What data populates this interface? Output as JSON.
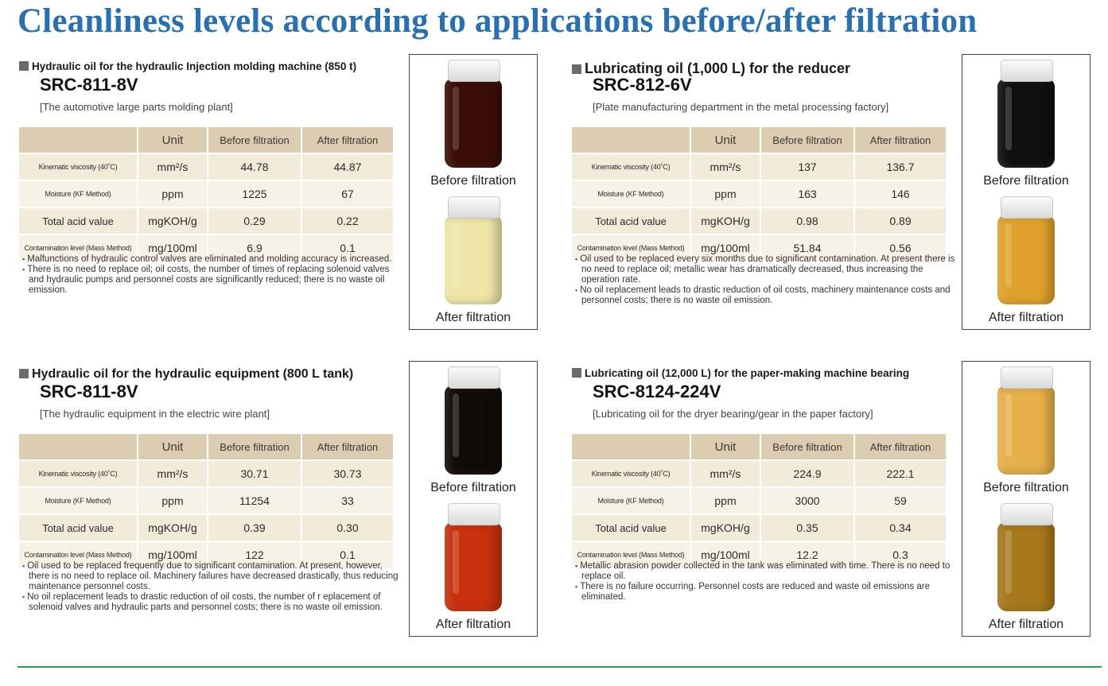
{
  "title": "Cleanliness levels according to applications before/after filtration",
  "table_headers": {
    "unit": "Unit",
    "before": "Before filtration",
    "after": "After filtration"
  },
  "photo_captions": {
    "before": "Before filtration",
    "after": "After filtration"
  },
  "panels": [
    {
      "heading": "Hydraulic oil for the hydraulic Injection molding machine (850 t)",
      "model": "SRC-811-8V",
      "location": "[The automotive large parts molding plant]",
      "rows": [
        {
          "label": "Kinematic viscosity (40˚C)",
          "unit": "mm²/s",
          "before": "44.78",
          "after": "44.87"
        },
        {
          "label": "Moisture (KF Method)",
          "unit": "ppm",
          "before": "1225",
          "after": "67"
        },
        {
          "label": "Total acid value",
          "unit": "mgKOH/g",
          "before": "0.29",
          "after": "0.22"
        },
        {
          "label": "Contamination level (Mass Method)",
          "unit": "mg/100ml",
          "before": "6.9",
          "after": "0.1"
        }
      ],
      "notes": [
        "Malfunctions of hydraulic control valves are eliminated and molding accuracy is increased.",
        "There is no need to replace oil; oil costs, the number of times of replacing solenoid valves and hydraulic pumps and personnel costs are significantly reduced; there is no waste oil emission."
      ],
      "colors": {
        "before": "#3a0d05",
        "after": "#efe6a8"
      }
    },
    {
      "heading": "Lubricating oil (1,000 L) for the reducer",
      "model": "SRC-812-6V",
      "location": "[Plate manufacturing department in the metal processing factory]",
      "rows": [
        {
          "label": "Kinematic viscosity (40˚C)",
          "unit": "mm²/s",
          "before": "137",
          "after": "136.7"
        },
        {
          "label": "Moisture (KF Method)",
          "unit": "ppm",
          "before": "163",
          "after": "146"
        },
        {
          "label": "Total acid value",
          "unit": "mgKOH/g",
          "before": "0.98",
          "after": "0.89"
        },
        {
          "label": "Contamination level (Mass Method)",
          "unit": "mg/100ml",
          "before": "51.84",
          "after": "0.56"
        }
      ],
      "notes": [
        "Oil used to be replaced every six months due to significant contamination. At present there is no need to replace oil; metallic wear has dramatically decreased, thus increasing the operation rate.",
        "No oil replacement leads to drastic reduction of oil costs, machinery maintenance costs and personnel costs; there is no waste oil emission."
      ],
      "colors": {
        "before": "#101010",
        "after": "#e0a22c"
      }
    },
    {
      "heading": "Hydraulic oil for the hydraulic equipment (800 L tank)",
      "model": "SRC-811-8V",
      "location": "[The hydraulic equipment in the electric wire plant]",
      "rows": [
        {
          "label": "Kinematic viscosity (40˚C)",
          "unit": "mm²/s",
          "before": "30.71",
          "after": "30.73"
        },
        {
          "label": "Moisture (KF Method)",
          "unit": "ppm",
          "before": "11254",
          "after": "33"
        },
        {
          "label": "Total acid value",
          "unit": "mgKOH/g",
          "before": "0.39",
          "after": "0.30"
        },
        {
          "label": "Contamination level (Mass Method)",
          "unit": "mg/100ml",
          "before": "122",
          "after": "0.1"
        }
      ],
      "notes": [
        "Oil used to be replaced frequently due to significant contamination. At present, however, there is no need to replace oil. Machinery failures have decreased drastically, thus reducing maintenance personnel costs.",
        "No oil replacement leads to drastic reduction of oil costs, the number of r eplacement of solenoid valves and hydraulic parts and personnel costs; there is no waste oil emission."
      ],
      "colors": {
        "before": "#120a08",
        "after": "#c8300e"
      }
    },
    {
      "heading": "Lubricating oil (12,000 L) for the paper-making machine bearing",
      "model": "SRC-8124-224V",
      "location": "[Lubricating oil for the dryer bearing/gear in the paper factory]",
      "rows": [
        {
          "label": "Kinematic viscosity (40˚C)",
          "unit": "mm²/s",
          "before": "224.9",
          "after": "222.1"
        },
        {
          "label": "Moisture (KF Method)",
          "unit": "ppm",
          "before": "3000",
          "after": "59"
        },
        {
          "label": "Total acid value",
          "unit": "mgKOH/g",
          "before": "0.35",
          "after": "0.34"
        },
        {
          "label": "Contamination level (Mass Method)",
          "unit": "mg/100ml",
          "before": "12.2",
          "after": "0.3"
        }
      ],
      "notes": [
        "Metallic abrasion powder collected in the tank was eliminated with time. There is no need to replace oil.",
        "There is no failure occurring. Personnel costs are reduced and waste oil emissions are eliminated."
      ],
      "colors": {
        "before": "#e6b04a",
        "after": "#a8781c"
      }
    }
  ]
}
